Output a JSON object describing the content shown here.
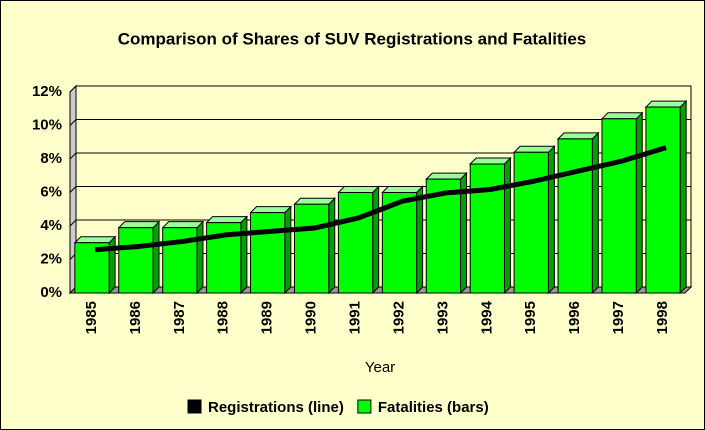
{
  "chart_data": {
    "type": "bar",
    "title": "Comparison of Shares of SUV Registrations and Fatalities",
    "x_label": "Year",
    "categories": [
      "1985",
      "1986",
      "1987",
      "1988",
      "1989",
      "1990",
      "1991",
      "1992",
      "1993",
      "1994",
      "1995",
      "1996",
      "1997",
      "1998"
    ],
    "series": [
      {
        "name": "Registrations (line)",
        "type": "line",
        "color": "#000000",
        "values": [
          2.4,
          2.6,
          2.9,
          3.3,
          3.5,
          3.7,
          4.3,
          5.3,
          5.8,
          6.0,
          6.5,
          7.1,
          7.7,
          8.5
        ]
      },
      {
        "name": "Fatalities (bars)",
        "type": "bar",
        "color": "#00ff00",
        "values": [
          3.0,
          3.9,
          3.9,
          4.2,
          4.8,
          5.3,
          6.0,
          6.0,
          6.8,
          7.7,
          8.4,
          9.2,
          10.4,
          11.1
        ]
      }
    ],
    "ylim": [
      0,
      12
    ],
    "yticks": [
      {
        "value": 0,
        "label": "0%"
      },
      {
        "value": 2,
        "label": "2%"
      },
      {
        "value": 4,
        "label": "4%"
      },
      {
        "value": 6,
        "label": "6%"
      },
      {
        "value": 8,
        "label": "8%"
      },
      {
        "value": 10,
        "label": "10%"
      },
      {
        "value": 12,
        "label": "12%"
      }
    ],
    "grid": true,
    "legend": "bottom"
  }
}
